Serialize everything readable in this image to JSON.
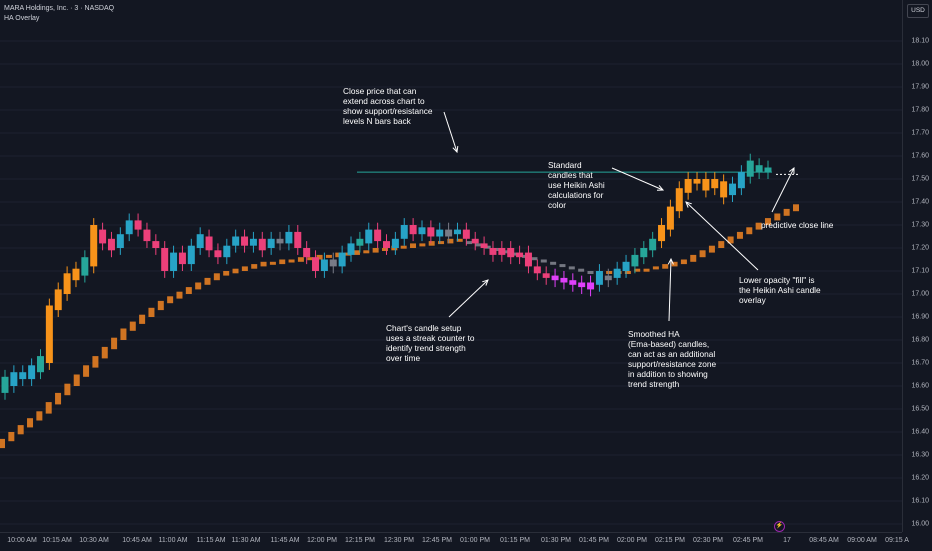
{
  "header": {
    "symbol_line": "MARA Holdings, Inc. · 3 · NASDAQ",
    "indicator": "HA Overlay"
  },
  "currency_button": "USD",
  "price_axis": {
    "labels": [
      "18.10",
      "18.00",
      "17.90",
      "17.80",
      "17.70",
      "17.60",
      "17.50",
      "17.40",
      "17.30",
      "17.20",
      "17.10",
      "17.00",
      "16.90",
      "16.80",
      "16.70",
      "16.60",
      "16.50",
      "16.40",
      "16.30",
      "16.20",
      "16.10",
      "16.00"
    ]
  },
  "time_axis": {
    "labels": [
      "10:00 AM",
      "10:15 AM",
      "10:30 AM",
      "10:45 AM",
      "11:00 AM",
      "11:15 AM",
      "11:30 AM",
      "11:45 AM",
      "12:00 PM",
      "12:15 PM",
      "12:30 PM",
      "12:45 PM",
      "01:00 PM",
      "01:15 PM",
      "01:30 PM",
      "01:45 PM",
      "02:00 PM",
      "02:15 PM",
      "02:30 PM",
      "02:45 PM",
      "17",
      "08:45 AM",
      "09:00 AM",
      "09:15 A"
    ]
  },
  "event_marker": "⚡",
  "annotations": {
    "close_price": [
      "Close price that can",
      "extend across chart to",
      "show support/resistance",
      "levels N bars back"
    ],
    "standard_candles": [
      "Standard",
      "candles that",
      "use Heikin Ashi",
      "calculations for",
      "color"
    ],
    "predictive": [
      "predictive close line"
    ],
    "lower_opacity": [
      "Lower opacity \"fill\" is",
      "the Heikin Ashi candle",
      "overlay"
    ],
    "candle_setup": [
      "Chart's candle setup",
      "uses a streak counter to",
      "identify trend strength",
      "over time"
    ],
    "smoothed": [
      "Smoothed HA",
      "(Ema-based) candles,",
      "can act as an additional",
      "support/resistance zone",
      "in addition to showing",
      "trend strength"
    ]
  },
  "colors": {
    "background": "#131722",
    "teal": "#26a69a",
    "cyan": "#27a3c6",
    "orange": "#f7931a",
    "dark_orange": "#e67e22",
    "pink": "#ec407a",
    "magenta": "#e040fb",
    "gray": "#787b86",
    "level_line": "#26a69a"
  },
  "chart_data": {
    "type": "candlestick",
    "y_range": [
      15.95,
      18.15
    ],
    "close_level": 17.53,
    "candles": [
      {
        "o": 16.57,
        "c": 16.64,
        "color": "teal"
      },
      {
        "o": 16.6,
        "c": 16.66,
        "color": "cyan"
      },
      {
        "o": 16.63,
        "c": 16.66,
        "color": "cyan"
      },
      {
        "o": 16.63,
        "c": 16.69,
        "color": "cyan"
      },
      {
        "o": 16.66,
        "c": 16.73,
        "color": "teal"
      },
      {
        "o": 16.7,
        "c": 16.95,
        "color": "orange"
      },
      {
        "o": 16.93,
        "c": 17.02,
        "color": "orange"
      },
      {
        "o": 17.0,
        "c": 17.09,
        "color": "orange"
      },
      {
        "o": 17.06,
        "c": 17.11,
        "color": "orange"
      },
      {
        "o": 17.08,
        "c": 17.16,
        "color": "teal"
      },
      {
        "o": 17.12,
        "c": 17.3,
        "color": "orange"
      },
      {
        "o": 17.28,
        "c": 17.22,
        "color": "pink"
      },
      {
        "o": 17.24,
        "c": 17.19,
        "color": "pink"
      },
      {
        "o": 17.2,
        "c": 17.26,
        "color": "cyan"
      },
      {
        "o": 17.26,
        "c": 17.32,
        "color": "cyan"
      },
      {
        "o": 17.32,
        "c": 17.28,
        "color": "pink"
      },
      {
        "o": 17.28,
        "c": 17.23,
        "color": "pink"
      },
      {
        "o": 17.23,
        "c": 17.2,
        "color": "pink"
      },
      {
        "o": 17.2,
        "c": 17.1,
        "color": "pink"
      },
      {
        "o": 17.1,
        "c": 17.18,
        "color": "cyan"
      },
      {
        "o": 17.18,
        "c": 17.13,
        "color": "pink"
      },
      {
        "o": 17.13,
        "c": 17.21,
        "color": "cyan"
      },
      {
        "o": 17.2,
        "c": 17.26,
        "color": "cyan"
      },
      {
        "o": 17.25,
        "c": 17.19,
        "color": "pink"
      },
      {
        "o": 17.19,
        "c": 17.16,
        "color": "pink"
      },
      {
        "o": 17.16,
        "c": 17.21,
        "color": "cyan"
      },
      {
        "o": 17.21,
        "c": 17.25,
        "color": "cyan"
      },
      {
        "o": 17.25,
        "c": 17.21,
        "color": "pink"
      },
      {
        "o": 17.21,
        "c": 17.24,
        "color": "cyan"
      },
      {
        "o": 17.24,
        "c": 17.19,
        "color": "pink"
      },
      {
        "o": 17.2,
        "c": 17.24,
        "color": "cyan"
      },
      {
        "o": 17.24,
        "c": 17.22,
        "color": "gray"
      },
      {
        "o": 17.22,
        "c": 17.27,
        "color": "cyan"
      },
      {
        "o": 17.27,
        "c": 17.2,
        "color": "pink"
      },
      {
        "o": 17.2,
        "c": 17.16,
        "color": "pink"
      },
      {
        "o": 17.16,
        "c": 17.1,
        "color": "pink"
      },
      {
        "o": 17.1,
        "c": 17.15,
        "color": "cyan"
      },
      {
        "o": 17.15,
        "c": 17.12,
        "color": "gray"
      },
      {
        "o": 17.12,
        "c": 17.18,
        "color": "cyan"
      },
      {
        "o": 17.17,
        "c": 17.22,
        "color": "cyan"
      },
      {
        "o": 17.21,
        "c": 17.24,
        "color": "teal"
      },
      {
        "o": 17.22,
        "c": 17.28,
        "color": "cyan"
      },
      {
        "o": 17.28,
        "c": 17.23,
        "color": "pink"
      },
      {
        "o": 17.23,
        "c": 17.2,
        "color": "pink"
      },
      {
        "o": 17.2,
        "c": 17.24,
        "color": "cyan"
      },
      {
        "o": 17.24,
        "c": 17.3,
        "color": "cyan"
      },
      {
        "o": 17.3,
        "c": 17.26,
        "color": "pink"
      },
      {
        "o": 17.26,
        "c": 17.29,
        "color": "cyan"
      },
      {
        "o": 17.29,
        "c": 17.25,
        "color": "pink"
      },
      {
        "o": 17.25,
        "c": 17.28,
        "color": "cyan"
      },
      {
        "o": 17.28,
        "c": 17.25,
        "color": "gray"
      },
      {
        "o": 17.26,
        "c": 17.28,
        "color": "cyan"
      },
      {
        "o": 17.28,
        "c": 17.24,
        "color": "pink"
      },
      {
        "o": 17.24,
        "c": 17.22,
        "color": "pink"
      },
      {
        "o": 17.22,
        "c": 17.2,
        "color": "pink"
      },
      {
        "o": 17.2,
        "c": 17.17,
        "color": "pink"
      },
      {
        "o": 17.17,
        "c": 17.2,
        "color": "pink"
      },
      {
        "o": 17.2,
        "c": 17.16,
        "color": "pink"
      },
      {
        "o": 17.16,
        "c": 17.18,
        "color": "pink"
      },
      {
        "o": 17.18,
        "c": 17.12,
        "color": "pink"
      },
      {
        "o": 17.12,
        "c": 17.09,
        "color": "pink"
      },
      {
        "o": 17.09,
        "c": 17.07,
        "color": "pink"
      },
      {
        "o": 17.08,
        "c": 17.06,
        "color": "magenta"
      },
      {
        "o": 17.07,
        "c": 17.05,
        "color": "magenta"
      },
      {
        "o": 17.06,
        "c": 17.04,
        "color": "magenta"
      },
      {
        "o": 17.05,
        "c": 17.03,
        "color": "magenta"
      },
      {
        "o": 17.05,
        "c": 17.02,
        "color": "magenta"
      },
      {
        "o": 17.04,
        "c": 17.1,
        "color": "cyan"
      },
      {
        "o": 17.08,
        "c": 17.06,
        "color": "gray"
      },
      {
        "o": 17.07,
        "c": 17.11,
        "color": "cyan"
      },
      {
        "o": 17.1,
        "c": 17.14,
        "color": "cyan"
      },
      {
        "o": 17.12,
        "c": 17.17,
        "color": "teal"
      },
      {
        "o": 17.16,
        "c": 17.2,
        "color": "teal"
      },
      {
        "o": 17.19,
        "c": 17.24,
        "color": "teal"
      },
      {
        "o": 17.23,
        "c": 17.3,
        "color": "orange"
      },
      {
        "o": 17.28,
        "c": 17.38,
        "color": "orange"
      },
      {
        "o": 17.36,
        "c": 17.46,
        "color": "orange"
      },
      {
        "o": 17.44,
        "c": 17.5,
        "color": "orange"
      },
      {
        "o": 17.48,
        "c": 17.5,
        "color": "orange"
      },
      {
        "o": 17.5,
        "c": 17.45,
        "color": "orange"
      },
      {
        "o": 17.46,
        "c": 17.5,
        "color": "orange"
      },
      {
        "o": 17.49,
        "c": 17.42,
        "color": "orange"
      },
      {
        "o": 17.43,
        "c": 17.48,
        "color": "cyan"
      },
      {
        "o": 17.46,
        "c": 17.53,
        "color": "cyan"
      },
      {
        "o": 17.51,
        "c": 17.58,
        "color": "teal"
      },
      {
        "o": 17.56,
        "c": 17.53,
        "color": "teal"
      },
      {
        "o": 17.53,
        "c": 17.55,
        "color": "teal"
      }
    ],
    "ha_overlay": [
      {
        "o": 16.33,
        "c": 16.37
      },
      {
        "o": 16.36,
        "c": 16.4
      },
      {
        "o": 16.39,
        "c": 16.43
      },
      {
        "o": 16.42,
        "c": 16.46
      },
      {
        "o": 16.45,
        "c": 16.49
      },
      {
        "o": 16.48,
        "c": 16.53
      },
      {
        "o": 16.52,
        "c": 16.57
      },
      {
        "o": 16.56,
        "c": 16.61
      },
      {
        "o": 16.6,
        "c": 16.65
      },
      {
        "o": 16.64,
        "c": 16.69
      },
      {
        "o": 16.68,
        "c": 16.73
      },
      {
        "o": 16.72,
        "c": 16.77
      },
      {
        "o": 16.76,
        "c": 16.81
      },
      {
        "o": 16.8,
        "c": 16.85
      },
      {
        "o": 16.84,
        "c": 16.88
      },
      {
        "o": 16.87,
        "c": 16.91
      },
      {
        "o": 16.9,
        "c": 16.94
      },
      {
        "o": 16.93,
        "c": 16.97
      },
      {
        "o": 16.96,
        "c": 16.99
      },
      {
        "o": 16.98,
        "c": 17.01
      },
      {
        "o": 17.0,
        "c": 17.03
      },
      {
        "o": 17.02,
        "c": 17.05
      },
      {
        "o": 17.04,
        "c": 17.07
      },
      {
        "o": 17.06,
        "c": 17.09
      },
      {
        "o": 17.08,
        "c": 17.1
      },
      {
        "o": 17.09,
        "c": 17.11
      },
      {
        "o": 17.1,
        "c": 17.12
      },
      {
        "o": 17.11,
        "c": 17.13
      },
      {
        "o": 17.12,
        "c": 17.14
      },
      {
        "o": 17.13,
        "c": 17.14
      },
      {
        "o": 17.13,
        "c": 17.15
      },
      {
        "o": 17.14,
        "c": 17.15
      },
      {
        "o": 17.14,
        "c": 17.16
      },
      {
        "o": 17.15,
        "c": 17.16
      },
      {
        "o": 17.15,
        "c": 17.17
      },
      {
        "o": 17.16,
        "c": 17.17
      },
      {
        "o": 17.16,
        "c": 17.18
      },
      {
        "o": 17.17,
        "c": 17.18
      },
      {
        "o": 17.17,
        "c": 17.19
      },
      {
        "o": 17.18,
        "c": 17.19
      },
      {
        "o": 17.18,
        "c": 17.2
      },
      {
        "o": 17.19,
        "c": 17.2
      },
      {
        "o": 17.19,
        "c": 17.21
      },
      {
        "o": 17.2,
        "c": 17.21
      },
      {
        "o": 17.2,
        "c": 17.22
      },
      {
        "o": 17.21,
        "c": 17.22
      },
      {
        "o": 17.21,
        "c": 17.23
      },
      {
        "o": 17.22,
        "c": 17.23
      },
      {
        "o": 17.22,
        "c": 17.24
      },
      {
        "o": 17.23,
        "c": 17.24
      },
      {
        "o": 17.23,
        "c": 17.22,
        "g": 1
      },
      {
        "o": 17.22,
        "c": 17.21,
        "g": 1
      },
      {
        "o": 17.21,
        "c": 17.2,
        "g": 1
      },
      {
        "o": 17.2,
        "c": 17.19,
        "g": 1
      },
      {
        "o": 17.19,
        "c": 17.18,
        "g": 1
      },
      {
        "o": 17.18,
        "c": 17.17,
        "g": 1
      },
      {
        "o": 17.17,
        "c": 17.16,
        "g": 1
      },
      {
        "o": 17.16,
        "c": 17.15,
        "g": 1
      },
      {
        "o": 17.15,
        "c": 17.14,
        "g": 1
      },
      {
        "o": 17.14,
        "c": 17.13,
        "g": 1
      },
      {
        "o": 17.13,
        "c": 17.12,
        "g": 1
      },
      {
        "o": 17.12,
        "c": 17.11,
        "g": 1
      },
      {
        "o": 17.11,
        "c": 17.1,
        "g": 1
      },
      {
        "o": 17.1,
        "c": 17.09,
        "g": 1
      },
      {
        "o": 17.09,
        "c": 17.09,
        "g": 1
      },
      {
        "o": 17.09,
        "c": 17.1
      },
      {
        "o": 17.09,
        "c": 17.1
      },
      {
        "o": 17.09,
        "c": 17.1
      },
      {
        "o": 17.1,
        "c": 17.11
      },
      {
        "o": 17.1,
        "c": 17.11
      },
      {
        "o": 17.11,
        "c": 17.12
      },
      {
        "o": 17.11,
        "c": 17.13
      },
      {
        "o": 17.12,
        "c": 17.14
      },
      {
        "o": 17.13,
        "c": 17.15
      },
      {
        "o": 17.14,
        "c": 17.17
      },
      {
        "o": 17.16,
        "c": 17.19
      },
      {
        "o": 17.18,
        "c": 17.21
      },
      {
        "o": 17.2,
        "c": 17.23
      },
      {
        "o": 17.22,
        "c": 17.25
      },
      {
        "o": 17.24,
        "c": 17.27
      },
      {
        "o": 17.26,
        "c": 17.29
      },
      {
        "o": 17.28,
        "c": 17.31
      },
      {
        "o": 17.3,
        "c": 17.33
      },
      {
        "o": 17.32,
        "c": 17.35
      },
      {
        "o": 17.34,
        "c": 17.37
      },
      {
        "o": 17.36,
        "c": 17.39
      }
    ]
  }
}
